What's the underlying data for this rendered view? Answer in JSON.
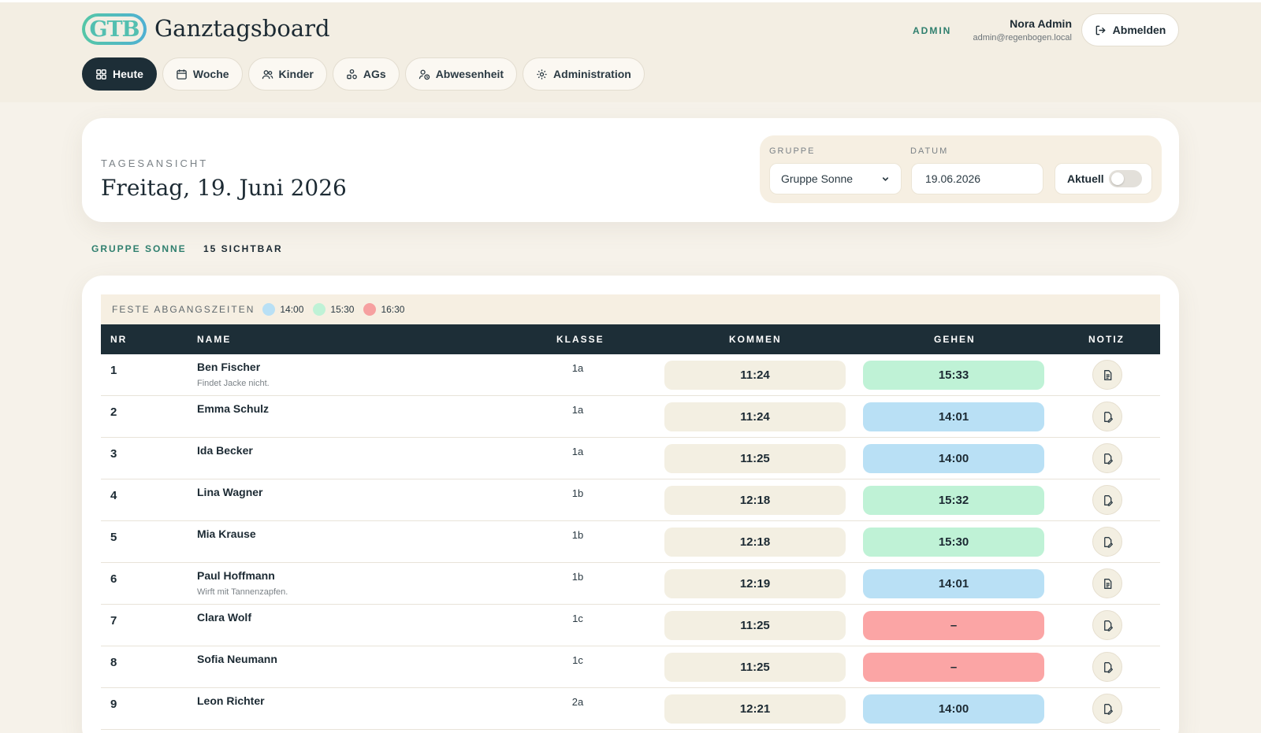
{
  "app": {
    "logo_text": "GTB",
    "title": "Ganztagsboard"
  },
  "header": {
    "role": "ADMIN",
    "user_name": "Nora Admin",
    "user_email": "admin@regenbogen.local",
    "logout_label": "Abmelden"
  },
  "nav": [
    {
      "label": "Heute",
      "icon": "dashboard-icon",
      "active": true
    },
    {
      "label": "Woche",
      "icon": "calendar-icon",
      "active": false
    },
    {
      "label": "Kinder",
      "icon": "users-icon",
      "active": false
    },
    {
      "label": "AGs",
      "icon": "shapes-icon",
      "active": false
    },
    {
      "label": "Abwesenheit",
      "icon": "user-clock-icon",
      "active": false
    },
    {
      "label": "Administration",
      "icon": "gear-icon",
      "active": false
    }
  ],
  "hero": {
    "eyebrow": "TAGESANSICHT",
    "date_title": "Freitag, 19. Juni 2026",
    "filters": {
      "group_label": "GRUPPE",
      "group_value": "Gruppe Sonne",
      "date_label": "DATUM",
      "date_value": "19.06.2026",
      "toggle_label": "Aktuell",
      "toggle_on": false
    }
  },
  "meta": {
    "group": "GRUPPE SONNE",
    "visible": "15 SICHTBAR"
  },
  "legend": {
    "title": "FESTE ABGANGSZEITEN",
    "items": [
      {
        "label": "14:00",
        "color": "#b9e0f5"
      },
      {
        "label": "15:30",
        "color": "#bff2d6"
      },
      {
        "label": "16:30",
        "color": "#f6a0a0"
      }
    ]
  },
  "colors": {
    "blue": "#b9e0f5",
    "green": "#bff2d6",
    "red": "#fba5a5",
    "neutral": "#f3efe2",
    "dark": "#1d2e37"
  },
  "table": {
    "headers": {
      "nr": "NR",
      "name": "NAME",
      "klasse": "KLASSE",
      "kommen": "KOMMEN",
      "gehen": "GEHEN",
      "notiz": "NOTIZ"
    },
    "rows": [
      {
        "nr": "1",
        "name": "Ben Fischer",
        "note": "Findet Jacke nicht.",
        "klasse": "1a",
        "kommen": "11:24",
        "gehen": "15:33",
        "gehen_color": "green",
        "has_note": true
      },
      {
        "nr": "2",
        "name": "Emma Schulz",
        "note": "",
        "klasse": "1a",
        "kommen": "11:24",
        "gehen": "14:01",
        "gehen_color": "blue",
        "has_note": false
      },
      {
        "nr": "3",
        "name": "Ida Becker",
        "note": "",
        "klasse": "1a",
        "kommen": "11:25",
        "gehen": "14:00",
        "gehen_color": "blue",
        "has_note": false
      },
      {
        "nr": "4",
        "name": "Lina Wagner",
        "note": "",
        "klasse": "1b",
        "kommen": "12:18",
        "gehen": "15:32",
        "gehen_color": "green",
        "has_note": false
      },
      {
        "nr": "5",
        "name": "Mia Krause",
        "note": "",
        "klasse": "1b",
        "kommen": "12:18",
        "gehen": "15:30",
        "gehen_color": "green",
        "has_note": false
      },
      {
        "nr": "6",
        "name": "Paul Hoffmann",
        "note": "Wirft mit Tannenzapfen.",
        "klasse": "1b",
        "kommen": "12:19",
        "gehen": "14:01",
        "gehen_color": "blue",
        "has_note": true
      },
      {
        "nr": "7",
        "name": "Clara Wolf",
        "note": "",
        "klasse": "1c",
        "kommen": "11:25",
        "gehen": "–",
        "gehen_color": "red",
        "has_note": false
      },
      {
        "nr": "8",
        "name": "Sofia Neumann",
        "note": "",
        "klasse": "1c",
        "kommen": "11:25",
        "gehen": "–",
        "gehen_color": "red",
        "has_note": false
      },
      {
        "nr": "9",
        "name": "Leon Richter",
        "note": "",
        "klasse": "2a",
        "kommen": "12:21",
        "gehen": "14:00",
        "gehen_color": "blue",
        "has_note": false
      }
    ]
  }
}
